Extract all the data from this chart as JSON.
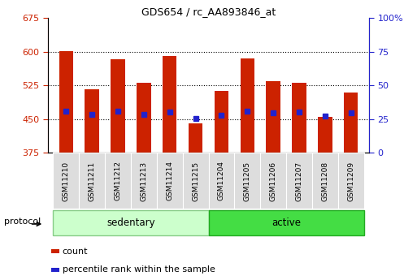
{
  "title": "GDS654 / rc_AA893846_at",
  "samples": [
    "GSM11210",
    "GSM11211",
    "GSM11212",
    "GSM11213",
    "GSM11214",
    "GSM11215",
    "GSM11204",
    "GSM11205",
    "GSM11206",
    "GSM11207",
    "GSM11208",
    "GSM11209"
  ],
  "bar_base": 375,
  "bar_tops": [
    602,
    517,
    584,
    530,
    590,
    440,
    512,
    585,
    535,
    530,
    455,
    510
  ],
  "percentile_values": [
    468,
    460,
    468,
    460,
    466,
    452,
    458,
    468,
    464,
    466,
    457,
    463
  ],
  "ylim_left": [
    375,
    675
  ],
  "yticks_left": [
    375,
    450,
    525,
    600,
    675
  ],
  "ylim_right": [
    0,
    100
  ],
  "yticks_right": [
    0,
    25,
    50,
    75,
    100
  ],
  "ytick_labels_right": [
    "0",
    "25",
    "50",
    "75",
    "100%"
  ],
  "groups": [
    {
      "label": "sedentary",
      "start": 0,
      "end": 6,
      "color": "#ccffcc",
      "border": "#88cc88"
    },
    {
      "label": "active",
      "start": 6,
      "end": 12,
      "color": "#44dd44",
      "border": "#22aa22"
    }
  ],
  "group_row_label": "protocol",
  "bar_color": "#cc2200",
  "percentile_color": "#2222cc",
  "left_tick_color": "#cc2200",
  "right_tick_color": "#2222cc",
  "grid_dotted_at": [
    450,
    525,
    600
  ],
  "legend_items": [
    {
      "label": "count",
      "color": "#cc2200"
    },
    {
      "label": "percentile rank within the sample",
      "color": "#2222cc"
    }
  ]
}
